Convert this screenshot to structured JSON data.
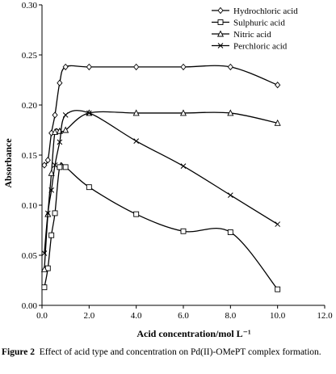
{
  "chart_data": {
    "type": "line",
    "xlabel": "Acid concentration/mol L⁻¹",
    "ylabel": "Absorbance",
    "xlim": [
      0,
      12
    ],
    "ylim": [
      0,
      0.3
    ],
    "xticks": [
      "0.0",
      "2.0",
      "4.0",
      "6.0",
      "8.0",
      "10.0",
      "12.0"
    ],
    "xtick_values": [
      0,
      2,
      4,
      6,
      8,
      10,
      12
    ],
    "yticks": [
      "0.00",
      "0.05",
      "0.10",
      "0.15",
      "0.20",
      "0.25",
      "0.30"
    ],
    "ytick_values": [
      0,
      0.05,
      0.1,
      0.15,
      0.2,
      0.25,
      0.3
    ],
    "grid": false,
    "legend_position": "top-right",
    "series": [
      {
        "name": "Hydrochloric acid",
        "marker": "diamond",
        "x": [
          0.1,
          0.25,
          0.4,
          0.55,
          0.75,
          1.0,
          2.0,
          4.0,
          6.0,
          8.0,
          10.0
        ],
        "y": [
          0.14,
          0.145,
          0.172,
          0.19,
          0.222,
          0.238,
          0.238,
          0.238,
          0.238,
          0.238,
          0.22
        ]
      },
      {
        "name": "Sulphuric acid",
        "marker": "square",
        "x": [
          0.1,
          0.25,
          0.4,
          0.55,
          0.75,
          1.0,
          2.0,
          4.0,
          6.0,
          8.0,
          10.0
        ],
        "y": [
          0.018,
          0.037,
          0.07,
          0.092,
          0.138,
          0.138,
          0.118,
          0.091,
          0.074,
          0.073,
          0.016
        ]
      },
      {
        "name": "Nitric acid",
        "marker": "triangle",
        "x": [
          0.1,
          0.25,
          0.4,
          0.55,
          0.75,
          1.0,
          2.0,
          4.0,
          6.0,
          8.0,
          10.0
        ],
        "y": [
          0.036,
          0.091,
          0.132,
          0.173,
          0.174,
          0.175,
          0.192,
          0.192,
          0.192,
          0.192,
          0.182
        ]
      },
      {
        "name": "Perchloric acid",
        "marker": "x",
        "x": [
          0.1,
          0.25,
          0.4,
          0.55,
          0.75,
          1.0,
          2.0,
          4.0,
          6.0,
          8.0,
          10.0
        ],
        "y": [
          0.052,
          0.092,
          0.115,
          0.14,
          0.163,
          0.19,
          0.192,
          0.164,
          0.139,
          0.11,
          0.081
        ]
      }
    ]
  },
  "caption": {
    "label": "Figure 2",
    "text": "Effect of acid type and concentration on Pd(II)-OMePT complex formation."
  }
}
